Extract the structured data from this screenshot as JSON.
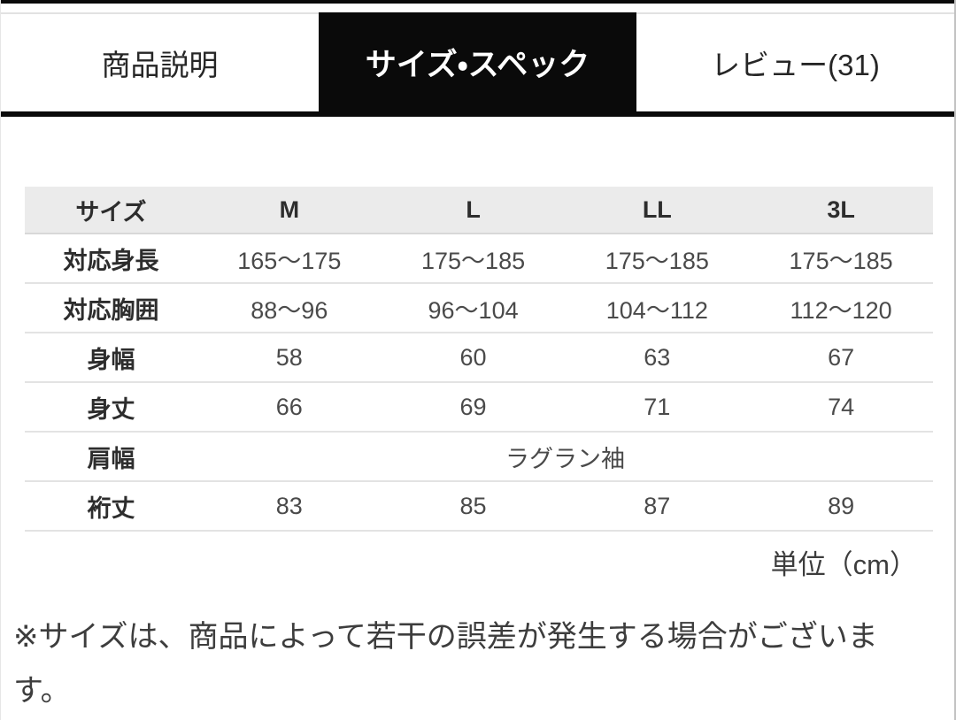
{
  "tabs": [
    {
      "label": "商品説明",
      "active": false
    },
    {
      "label": "サイズ・スペック",
      "active": true
    },
    {
      "label": "レビュー(31)",
      "active": false
    }
  ],
  "size_table": {
    "columns": [
      "サイズ",
      "M",
      "L",
      "LL",
      "3L"
    ],
    "rows": [
      {
        "label": "対応身長",
        "values": [
          "165〜175",
          "175〜185",
          "175〜185",
          "175〜185"
        ]
      },
      {
        "label": "対応胸囲",
        "values": [
          "88〜96",
          "96〜104",
          "104〜112",
          "112〜120"
        ]
      },
      {
        "label": "身幅",
        "values": [
          "58",
          "60",
          "63",
          "67"
        ]
      },
      {
        "label": "身丈",
        "values": [
          "66",
          "69",
          "71",
          "74"
        ]
      },
      {
        "label": "肩幅",
        "values": [
          "ラグラン袖"
        ],
        "span_all": true
      },
      {
        "label": "裄丈",
        "values": [
          "83",
          "85",
          "87",
          "89"
        ]
      }
    ],
    "unit_note": "単位（cm）"
  },
  "footnote": "※サイズは、商品によって若干の誤差が発生する場合がございます。",
  "colors": {
    "active_tab_bg": "#0a0a0a",
    "active_tab_text": "#ffffff",
    "header_row_bg": "#ebebeb",
    "row_border": "#e3e3e3",
    "label_text": "#2d2d2d",
    "value_text": "#4a4a4a"
  }
}
